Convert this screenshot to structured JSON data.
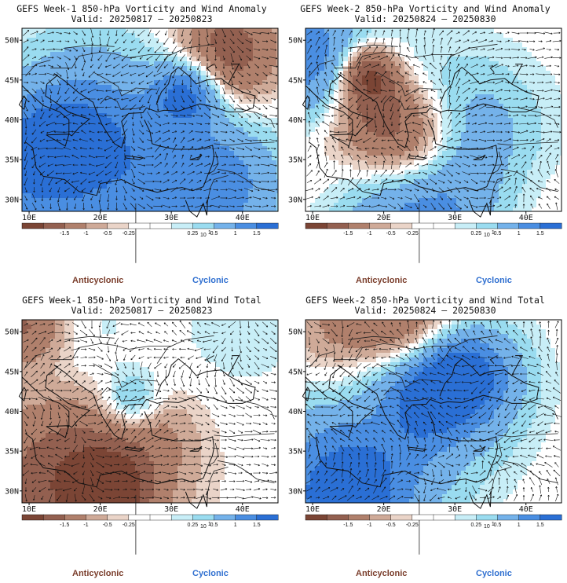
{
  "panels": [
    {
      "id": "p1",
      "title": "GEFS Week-1 850-hPa Vorticity and Wind Anomaly",
      "valid": "Valid: 20250817 – 20250823",
      "seed": 1
    },
    {
      "id": "p2",
      "title": "GEFS Week-2 850-hPa Vorticity and Wind Anomaly",
      "valid": "Valid: 20250824 – 20250830",
      "seed": 2
    },
    {
      "id": "p3",
      "title": "GEFS Week-1 850-hPa Vorticity and Wind Total",
      "valid": "Valid: 20250817 – 20250823",
      "seed": 3
    },
    {
      "id": "p4",
      "title": "GEFS Week-2 850-hPa Vorticity and Wind Total",
      "valid": "Valid: 20250824 – 20250830",
      "seed": 4
    }
  ],
  "axes": {
    "lat_labels": [
      "50N",
      "45N",
      "40N",
      "35N",
      "30N"
    ],
    "lat_values": [
      50,
      45,
      40,
      35,
      30
    ],
    "lon_labels": [
      "10E",
      "20E",
      "30E",
      "40E"
    ],
    "lon_values": [
      10,
      20,
      30,
      40
    ],
    "lon_range": [
      9,
      45
    ],
    "lat_range": [
      28.5,
      51.5
    ]
  },
  "colorbar": {
    "tick_labels": [
      "-1.5",
      "-1",
      "-0.5",
      "-0.25",
      "0.25",
      "0.5",
      "1",
      "1.5"
    ],
    "scale_label": "10",
    "scale_exp": "1",
    "colors": [
      "#7b4535",
      "#936050",
      "#b0806c",
      "#cfaa98",
      "#ead4c8",
      "#ffffff",
      "#ffffff",
      "#c8eef7",
      "#9adcf0",
      "#74b2ea",
      "#4a8ee2",
      "#2a6fd5"
    ]
  },
  "legend": {
    "anticyclonic": "Anticyclonic",
    "cyclonic": "Cyclonic"
  }
}
